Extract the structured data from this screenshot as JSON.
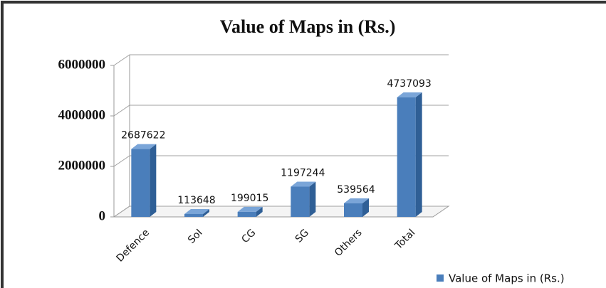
{
  "chart_data": {
    "type": "bar",
    "title": "Value of Maps in (Rs.)",
    "categories": [
      "Defence",
      "SoI",
      "CG",
      "SG",
      "Others",
      "Total"
    ],
    "series": [
      {
        "name": "Value of Maps in (Rs.)",
        "color": "#4a7ebb",
        "values": [
          2687622,
          113648,
          199015,
          1197244,
          539564,
          4737093
        ]
      }
    ],
    "ylim": [
      0,
      6000000
    ],
    "yticks": [
      0,
      2000000,
      4000000,
      6000000
    ],
    "grid": true,
    "legend": "bottom-right"
  }
}
